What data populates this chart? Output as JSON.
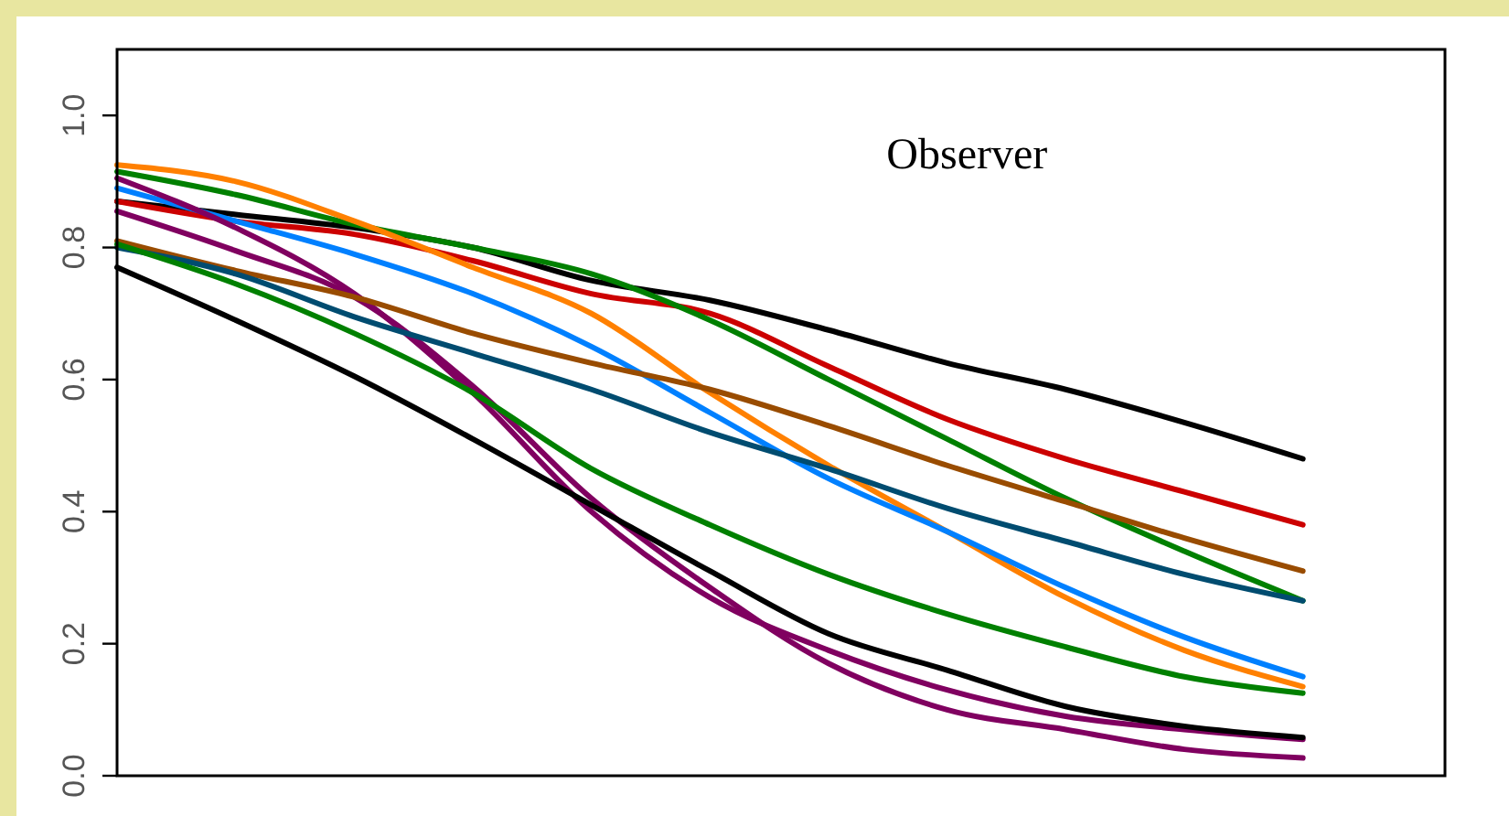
{
  "chart_data": {
    "type": "line",
    "categories": [
      null,
      null,
      null,
      null,
      null,
      null,
      null,
      null,
      null,
      null,
      null
    ],
    "ylim": [
      0,
      1.1
    ],
    "yticks": [
      {
        "value": 0,
        "label": "0.0"
      },
      {
        "value": 0.2,
        "label": "0.2"
      },
      {
        "value": 0.4,
        "label": "0.4"
      },
      {
        "value": 0.6,
        "label": "0.6"
      },
      {
        "value": 0.8,
        "label": "0.8"
      },
      {
        "value": 1,
        "label": "1.0"
      }
    ],
    "tick_labels": "y",
    "grid": false,
    "marker": "none",
    "line_style": "solid",
    "annotations": [
      "Observer"
    ],
    "series": [
      {
        "color": "#000000",
        "values": [
          0.87,
          0.85,
          0.83,
          0.8,
          0.75,
          0.72,
          0.675,
          0.625,
          0.585,
          0.535,
          0.48
        ]
      },
      {
        "color": "#cc0000",
        "values": [
          0.87,
          0.84,
          0.82,
          0.78,
          0.73,
          0.7,
          0.62,
          0.54,
          0.48,
          0.43,
          0.38
        ]
      },
      {
        "color": "#008000",
        "values": [
          0.915,
          0.88,
          0.835,
          0.8,
          0.76,
          0.69,
          0.6,
          0.51,
          0.42,
          0.34,
          0.265
        ]
      },
      {
        "color": "#ff8000",
        "values": [
          0.925,
          0.9,
          0.84,
          0.77,
          0.7,
          0.58,
          0.47,
          0.37,
          0.27,
          0.19,
          0.135
        ]
      },
      {
        "color": "#0080ff",
        "values": [
          0.89,
          0.84,
          0.79,
          0.73,
          0.65,
          0.55,
          0.45,
          0.37,
          0.285,
          0.21,
          0.15
        ]
      },
      {
        "color": "#800060",
        "values": [
          0.905,
          0.83,
          0.73,
          0.58,
          0.4,
          0.27,
          0.19,
          0.13,
          0.09,
          0.07,
          0.055
        ]
      },
      {
        "color": "#800060",
        "values": [
          0.855,
          0.795,
          0.725,
          0.59,
          0.42,
          0.285,
          0.17,
          0.1,
          0.07,
          0.04,
          0.027
        ]
      },
      {
        "color": "#000000",
        "values": [
          0.77,
          0.69,
          0.605,
          0.51,
          0.41,
          0.31,
          0.215,
          0.16,
          0.105,
          0.075,
          0.058
        ]
      },
      {
        "color": "#994c00",
        "values": [
          0.81,
          0.765,
          0.725,
          0.67,
          0.625,
          0.585,
          0.53,
          0.47,
          0.415,
          0.36,
          0.31
        ]
      },
      {
        "color": "#004c70",
        "values": [
          0.8,
          0.76,
          0.695,
          0.64,
          0.585,
          0.52,
          0.465,
          0.405,
          0.355,
          0.305,
          0.265
        ]
      },
      {
        "color": "#008000",
        "values": [
          0.805,
          0.745,
          0.67,
          0.58,
          0.465,
          0.38,
          0.305,
          0.245,
          0.195,
          0.15,
          0.125
        ]
      }
    ]
  }
}
